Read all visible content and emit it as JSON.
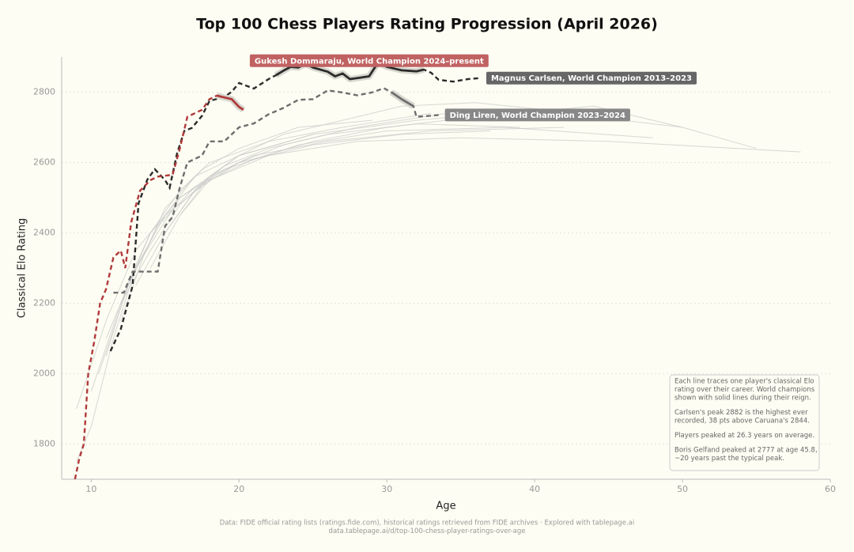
{
  "chart_data": {
    "type": "line",
    "title": "Top 100 Chess Players Rating Progression (April 2026)",
    "x_label": "Age",
    "y_label": "Classical Elo Rating",
    "xlim": [
      8,
      60
    ],
    "xticks": [
      10,
      20,
      30,
      40,
      50,
      60
    ],
    "ylim": [
      1700,
      2900
    ],
    "yticks": [
      1800,
      2000,
      2200,
      2400,
      2600,
      2800
    ],
    "grid": true,
    "background_color": "#c8c8c8",
    "background_series": [
      {
        "x": [
          9,
          11,
          13,
          15,
          18,
          22,
          28,
          35,
          45,
          58
        ],
        "values": [
          1900,
          2150,
          2350,
          2450,
          2550,
          2620,
          2660,
          2670,
          2660,
          2630
        ]
      },
      {
        "x": [
          10,
          12,
          14,
          16,
          19,
          24,
          30,
          38,
          48
        ],
        "values": [
          1950,
          2200,
          2400,
          2500,
          2580,
          2650,
          2690,
          2700,
          2670
        ]
      },
      {
        "x": [
          11,
          13,
          15,
          17,
          20,
          25,
          32,
          40,
          50,
          55
        ],
        "values": [
          2100,
          2300,
          2450,
          2560,
          2620,
          2680,
          2720,
          2750,
          2700,
          2640
        ]
      },
      {
        "x": [
          12,
          14,
          16,
          18,
          21,
          26,
          33,
          42
        ],
        "values": [
          2200,
          2350,
          2480,
          2560,
          2620,
          2660,
          2690,
          2700
        ]
      },
      {
        "x": [
          13,
          15,
          17,
          20,
          23,
          28,
          34,
          41
        ],
        "values": [
          2250,
          2400,
          2520,
          2600,
          2650,
          2700,
          2740,
          2720
        ]
      },
      {
        "x": [
          10.5,
          12.5,
          14.5,
          17,
          20,
          25,
          31,
          37
        ],
        "values": [
          2000,
          2250,
          2420,
          2530,
          2600,
          2650,
          2680,
          2690
        ]
      },
      {
        "x": [
          14,
          16,
          18,
          21,
          25,
          30,
          36,
          44,
          50
        ],
        "values": [
          2300,
          2450,
          2550,
          2610,
          2660,
          2700,
          2730,
          2760,
          2700
        ]
      },
      {
        "x": [
          12,
          13.5,
          15,
          17.5,
          20,
          24,
          29
        ],
        "values": [
          2150,
          2330,
          2470,
          2580,
          2640,
          2700,
          2720
        ]
      },
      {
        "x": [
          15,
          17,
          19,
          22,
          26,
          32,
          39
        ],
        "values": [
          2400,
          2520,
          2590,
          2640,
          2680,
          2710,
          2700
        ]
      },
      {
        "x": [
          11,
          12.5,
          14,
          16,
          18,
          22,
          27,
          33
        ],
        "values": [
          2050,
          2260,
          2400,
          2520,
          2600,
          2660,
          2700,
          2740
        ]
      },
      {
        "x": [
          9,
          10,
          11.5,
          13,
          16,
          20,
          25
        ],
        "values": [
          1750,
          1850,
          2100,
          2300,
          2500,
          2620,
          2680
        ]
      },
      {
        "x": [
          16,
          18,
          20,
          23,
          27,
          31,
          36,
          43
        ],
        "values": [
          2450,
          2560,
          2620,
          2680,
          2720,
          2760,
          2770,
          2740
        ]
      }
    ],
    "series": [
      {
        "name": "Magnus Carlsen, World Champion 2013–2023",
        "color": "#2b2b2b",
        "label_color": "#666666",
        "reign_x": [
          22.5,
          32.5
        ],
        "x": [
          11.3,
          12,
          12.8,
          13.2,
          13.8,
          14.3,
          15,
          15.3,
          15.8,
          16.3,
          16.8,
          17.5,
          18,
          19,
          19.5,
          20,
          21,
          22,
          22.5,
          23,
          23.5,
          24,
          24.5,
          25,
          26,
          26.5,
          27,
          27.5,
          28,
          28.8,
          29.3,
          29.5,
          30,
          31,
          32,
          32.5,
          33,
          33.5,
          34.5,
          35.5,
          36.3
        ],
        "values": [
          2064,
          2127,
          2250,
          2484,
          2552,
          2581,
          2550,
          2528,
          2625,
          2690,
          2698,
          2733,
          2775,
          2786,
          2801,
          2826,
          2810,
          2837,
          2848,
          2861,
          2872,
          2870,
          2881,
          2870,
          2858,
          2845,
          2853,
          2837,
          2840,
          2845,
          2877,
          2882,
          2872,
          2862,
          2859,
          2864,
          2855,
          2835,
          2830,
          2837,
          2840
        ]
      },
      {
        "name": "Ding Liren, World Champion 2023–2024",
        "color": "#6e6e6e",
        "label_color": "#888888",
        "reign_x": [
          30.3,
          31.8
        ],
        "x": [
          11.5,
          12.2,
          12.8,
          14.5,
          15,
          15.5,
          16,
          16.5,
          17.5,
          18,
          19,
          20,
          21,
          22,
          23,
          24,
          25,
          26,
          27,
          28,
          29,
          29.8,
          30.3,
          31,
          31.8,
          32,
          33,
          33.5
        ],
        "values": [
          2230,
          2230,
          2290,
          2290,
          2420,
          2445,
          2530,
          2600,
          2620,
          2660,
          2660,
          2700,
          2711,
          2737,
          2755,
          2778,
          2780,
          2805,
          2799,
          2791,
          2799,
          2811,
          2800,
          2780,
          2760,
          2730,
          2733,
          2735
        ]
      },
      {
        "name": "Gukesh Dommaraju, World Champion 2024–present",
        "color": "#b03a3a",
        "label_color": "#c06262",
        "reign_x": [
          18.5,
          20.3
        ],
        "x": [
          8.9,
          9.2,
          9.5,
          9.8,
          10.2,
          10.6,
          11,
          11.5,
          12,
          12.3,
          12.7,
          13.3,
          14,
          14.5,
          15.5,
          16,
          16.5,
          17.5,
          18,
          18.5,
          19,
          19.5,
          20,
          20.3
        ],
        "values": [
          1700,
          1760,
          1800,
          2000,
          2090,
          2200,
          2240,
          2330,
          2350,
          2300,
          2430,
          2520,
          2550,
          2560,
          2565,
          2640,
          2730,
          2750,
          2780,
          2790,
          2785,
          2780,
          2758,
          2750
        ]
      }
    ],
    "note": [
      [
        "Each line traces one player's classical Elo",
        "rating over their career. World champions",
        "shown with solid lines during their reign."
      ],
      [
        "Carlsen's peak 2882 is the highest ever",
        "recorded, 38 pts above Caruana's 2844."
      ],
      [
        "Players peaked at 26.3 years on average."
      ],
      [
        "Boris Gelfand peaked at 2777 at age 45.8,",
        "~20 years past the typical peak."
      ]
    ],
    "source": [
      "Data: FIDE official rating lists (ratings.fide.com), historical ratings retrieved from FIDE archives  ·  Explored with tablepage.ai",
      "data.tablepage.ai/d/top-100-chess-player-ratings-over-age"
    ]
  }
}
